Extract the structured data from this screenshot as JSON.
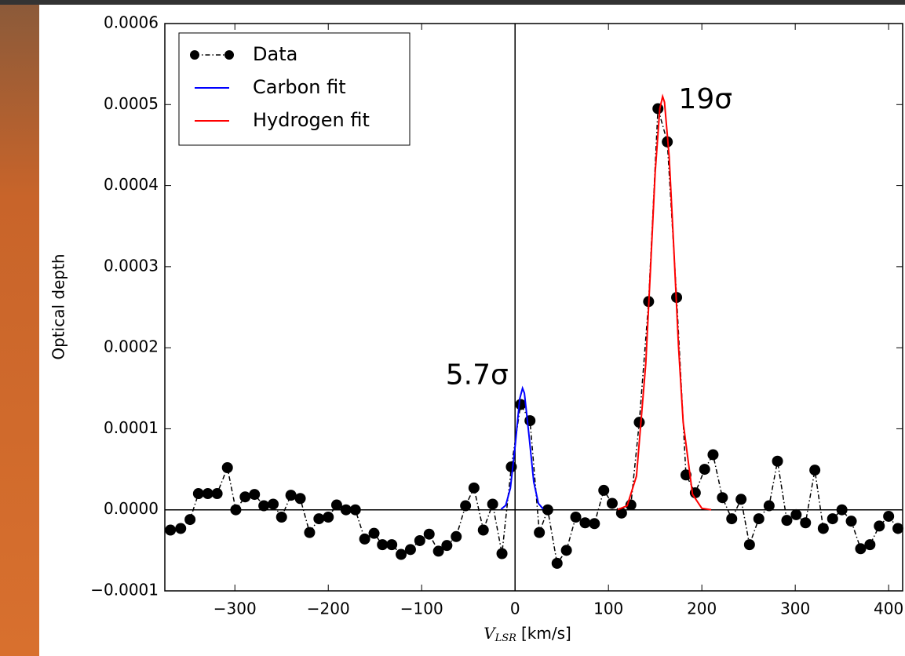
{
  "chart_data": {
    "type": "line",
    "ylabel": "Optical depth",
    "xlabel": "V",
    "xlabel_sub": "LSR",
    "xlabel_unit": "[km/s]",
    "xlim": [
      -375,
      415
    ],
    "ylim": [
      -0.0001,
      0.0006
    ],
    "xticks": [
      {
        "value": -300,
        "label": "−300"
      },
      {
        "value": -200,
        "label": "−200"
      },
      {
        "value": -100,
        "label": "−100"
      },
      0,
      100,
      200,
      300,
      400
    ],
    "yticks": [
      {
        "value": -0.0001,
        "label": "−0.0001"
      },
      {
        "value": 0,
        "label": "0.0000"
      },
      0.0001,
      0.0002,
      0.0003,
      0.0004,
      0.0005,
      0.0006
    ],
    "axhline": 0,
    "axvline": 0,
    "legend": "upper left",
    "series": [
      {
        "name": "Data",
        "color": "#000000",
        "markers": true,
        "x": [
          -369,
          -358,
          -348,
          -339,
          -329,
          -319,
          -308,
          -299,
          -289,
          -279,
          -269,
          -259,
          -250,
          -240,
          -230,
          -220,
          -210,
          -200,
          -191,
          -181,
          -171,
          -161,
          -151,
          -142,
          -132,
          -122,
          -112,
          -102,
          -92,
          -82,
          -73,
          -63,
          -53,
          -44,
          -34,
          -24,
          -14,
          -4,
          6,
          16,
          26,
          35,
          45,
          55,
          65,
          75,
          85,
          95,
          104,
          114,
          124,
          133,
          143,
          153,
          163,
          173,
          183,
          193,
          203,
          212,
          222,
          232,
          242,
          251,
          261,
          272,
          281,
          291,
          301,
          311,
          321,
          330,
          340,
          350,
          360,
          370,
          380,
          390,
          400,
          410
        ],
        "values": [
          -2.5e-05,
          -2.3e-05,
          -1.2e-05,
          2e-05,
          2e-05,
          2e-05,
          5.2e-05,
          0,
          1.6e-05,
          1.9e-05,
          5e-06,
          7e-06,
          -9e-06,
          1.8e-05,
          1.4e-05,
          -2.8e-05,
          -1.1e-05,
          -9e-06,
          6e-06,
          0,
          0,
          -3.6e-05,
          -2.9e-05,
          -4.3e-05,
          -4.3e-05,
          -5.5e-05,
          -4.9e-05,
          -3.8e-05,
          -3e-05,
          -5.1e-05,
          -4.4e-05,
          -3.3e-05,
          5e-06,
          2.7e-05,
          -2.5e-05,
          7e-06,
          -5.4e-05,
          5.3e-05,
          0.00013,
          0.00011,
          -2.8e-05,
          0,
          -6.6e-05,
          -5e-05,
          -9e-06,
          -1.6e-05,
          -1.7e-05,
          2.4e-05,
          8e-06,
          -4e-06,
          6e-06,
          0.000108,
          0.000257,
          0.000495,
          0.000454,
          0.000262,
          4.3e-05,
          2.1e-05,
          5e-05,
          6.8e-05,
          1.5e-05,
          -1.1e-05,
          1.3e-05,
          -4.3e-05,
          -1.1e-05,
          5e-06,
          6e-05,
          -1.3e-05,
          -6e-06,
          -1.6e-05,
          4.9e-05,
          -2.3e-05,
          -1.1e-05,
          0,
          -1.4e-05,
          -4.8e-05,
          -4.3e-05,
          -2e-05,
          -8e-06,
          -2.3e-05
        ]
      },
      {
        "name": "Carbon fit",
        "color": "#0000ff",
        "markers": false,
        "x": [
          -15,
          -10,
          -5,
          0,
          5,
          8,
          10,
          15,
          20,
          25,
          30
        ],
        "values": [
          7e-07,
          5.5e-06,
          2.68e-05,
          7.8e-05,
          0.000137,
          0.00015,
          0.000144,
          9.1e-05,
          3.45e-05,
          7.9e-06,
          1.1e-06
        ]
      },
      {
        "name": "Hydrogen fit",
        "color": "#ff0000",
        "markers": false,
        "x": [
          110,
          120,
          130,
          140,
          145,
          150,
          155,
          158,
          160,
          165,
          170,
          175,
          180,
          190,
          200,
          210
        ],
        "values": [
          3e-07,
          5e-06,
          4.15e-05,
          0.000181,
          0.000297,
          0.000416,
          0.000495,
          0.00051,
          0.000503,
          0.000436,
          0.000322,
          0.000202,
          0.000108,
          1.92e-05,
          1.8e-06,
          1e-07
        ]
      }
    ],
    "annotations": [
      {
        "text": "5.7σ",
        "x": -7,
        "y": 0.000165
      },
      {
        "text": "19σ",
        "x": 175,
        "y": 0.000505
      }
    ]
  }
}
